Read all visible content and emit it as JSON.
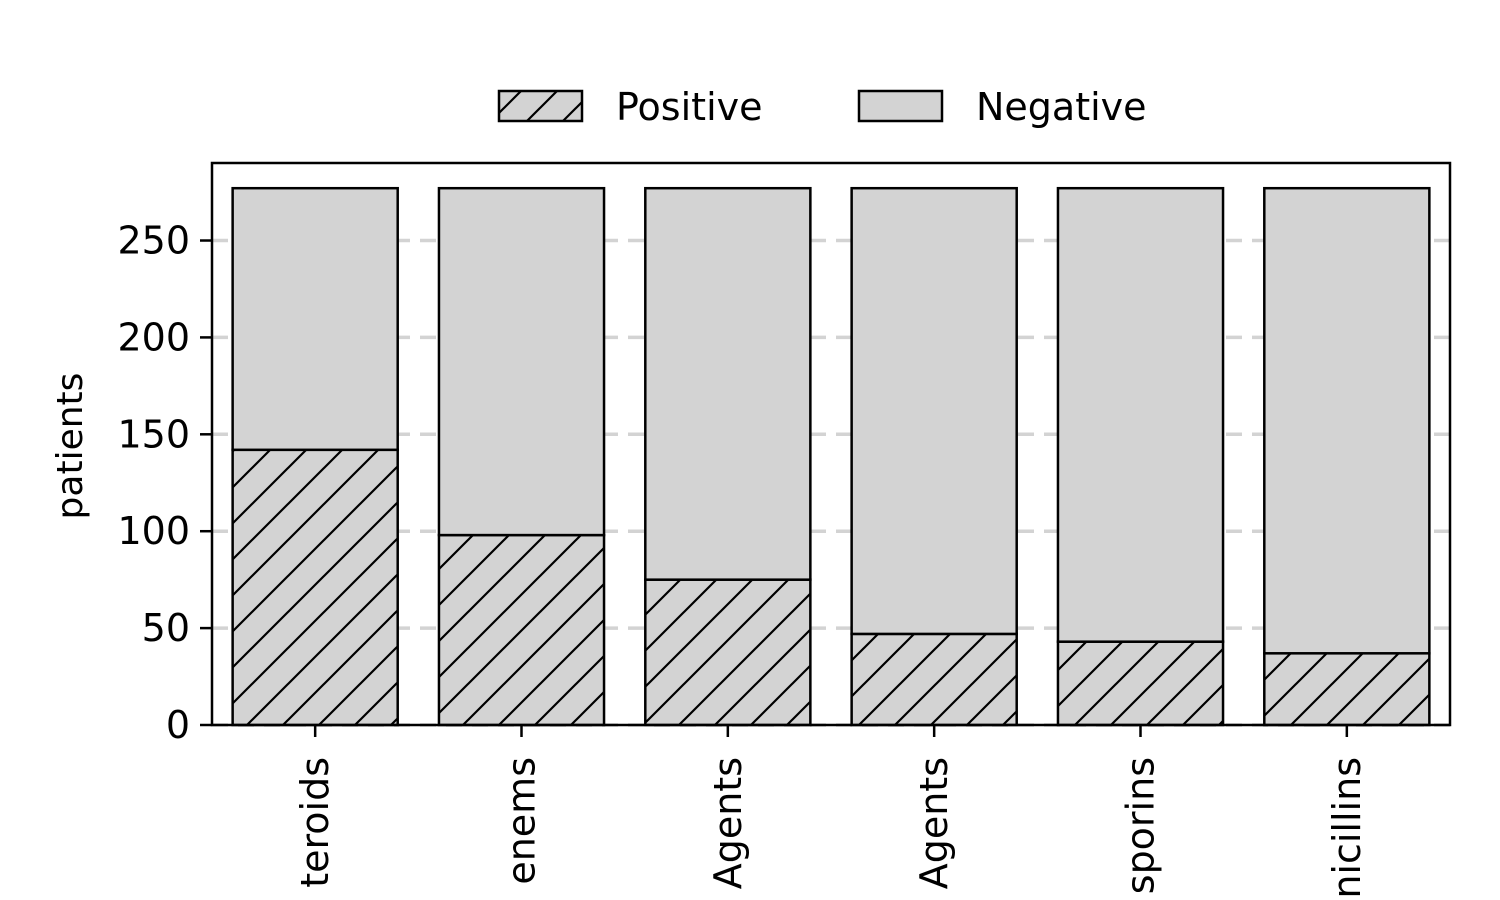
{
  "chart_data": {
    "type": "bar",
    "stacked": true,
    "categories": [
      "teroids",
      "enems",
      "Agents",
      "Agents",
      "sporins",
      "nicillins"
    ],
    "series": [
      {
        "name": "Positive",
        "values": [
          142,
          98,
          75,
          47,
          43,
          37
        ],
        "color": "#d3d3d3",
        "hatch": "diagonal"
      },
      {
        "name": "Negative",
        "values": [
          135,
          179,
          202,
          230,
          234,
          240
        ],
        "color": "#d3d3d3",
        "hatch": "none"
      }
    ],
    "xlabel": "",
    "ylabel": "patients",
    "ylim": [
      0,
      290
    ],
    "yticks": [
      0,
      50,
      100,
      150,
      200,
      250
    ],
    "grid": "y-dashed",
    "legend": "top-center"
  }
}
